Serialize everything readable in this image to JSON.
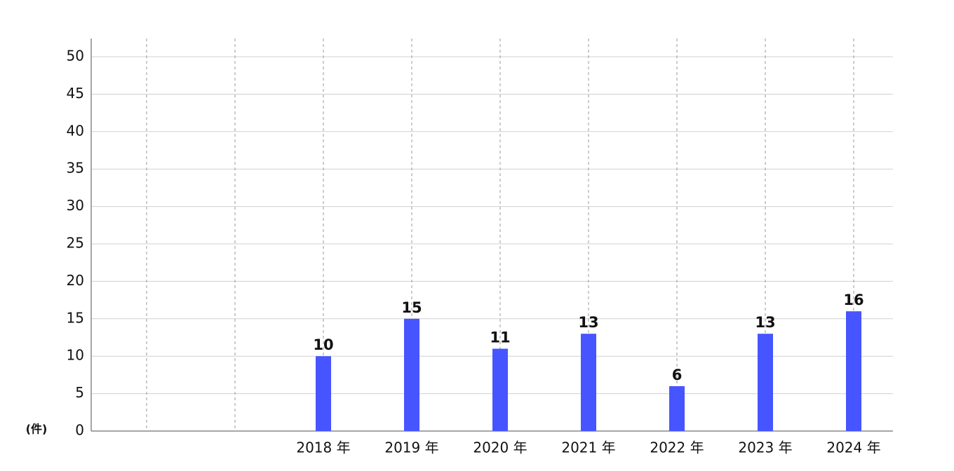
{
  "chart_data": {
    "type": "bar",
    "y_label": "(件)",
    "categories": [
      null,
      null,
      "2018 年",
      "2019 年",
      "2020 年",
      "2021 年",
      "2022 年",
      "2023 年",
      "2024 年"
    ],
    "values": [
      null,
      null,
      10,
      15,
      11,
      13,
      6,
      13,
      16
    ],
    "color": "#4655ff",
    "ylim": [
      0,
      50
    ],
    "yticks": [
      0,
      5,
      10,
      15,
      20,
      25,
      30,
      35,
      40,
      45,
      50
    ],
    "grid": true
  }
}
